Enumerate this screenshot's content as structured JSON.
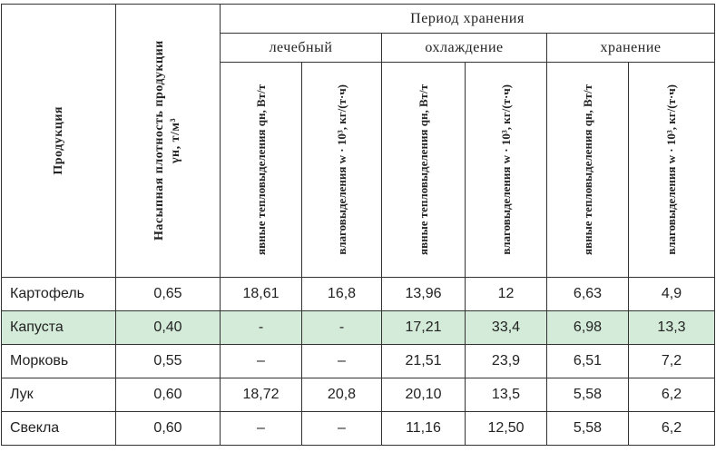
{
  "table": {
    "headers": {
      "product": "Продукция",
      "density": "Насыпная плотность продукции γн, т/м³",
      "period": "Период хранения",
      "groups": [
        {
          "name": "лечебный",
          "columns": [
            "явные тепловыделения qн, Вт/т",
            "влаговыделения w · 10³, кг/(т·ч)"
          ]
        },
        {
          "name": "охлаждение",
          "columns": [
            "явные тепловыделения qн, Вт/т",
            "влаговыделения w · 10³, кг/(т·ч)"
          ]
        },
        {
          "name": "хранение",
          "columns": [
            "явные тепловыделения qн, Вт/т",
            "влаговыделения w · 10³, кг/(т·ч)"
          ]
        }
      ]
    },
    "rows": [
      [
        "Картофель",
        "0,65",
        "18,61",
        "16,8",
        "13,96",
        "12",
        "6,63",
        "4,9"
      ],
      [
        "Капуста",
        "0,40",
        "-",
        "-",
        "17,21",
        "33,4",
        "6,98",
        "13,3"
      ],
      [
        "Морковь",
        "0,55",
        "–",
        "–",
        "21,51",
        "23,9",
        "6,51",
        "7,2"
      ],
      [
        "Лук",
        "0,60",
        "18,72",
        "20,8",
        "20,10",
        "13,5",
        "5,58",
        "6,2"
      ],
      [
        "Свекла",
        "0,60",
        "–",
        "–",
        "11,16",
        "12,50",
        "5,58",
        "6,2"
      ]
    ]
  }
}
